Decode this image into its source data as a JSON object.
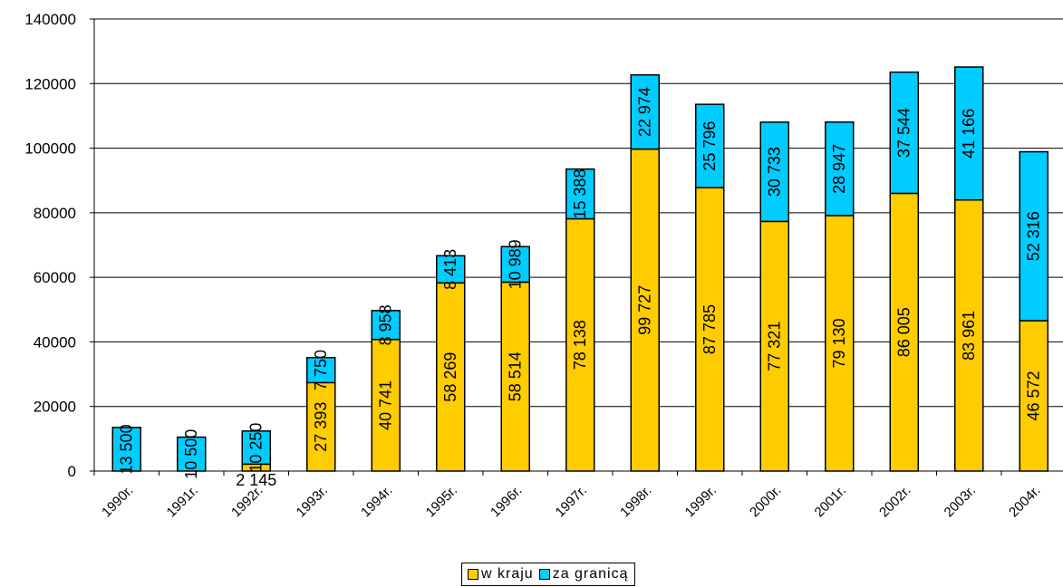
{
  "chart_data": {
    "type": "bar",
    "stacked": true,
    "categories": [
      "1990r.",
      "1991r.",
      "1992r.",
      "1993r.",
      "1994r.",
      "1995r.",
      "1996r.",
      "1997r.",
      "1998r.",
      "1999r.",
      "2000r.",
      "2001r.",
      "2002r.",
      "2003r.",
      "2004r."
    ],
    "series": [
      {
        "name": "w kraju",
        "color": "#FFCC00",
        "values": [
          null,
          null,
          2145,
          27393,
          40741,
          58269,
          58514,
          78138,
          99727,
          87785,
          77321,
          79130,
          86005,
          83961,
          46572
        ],
        "labels": [
          "",
          "",
          "2 145",
          "27 393",
          "40 741",
          "58 269",
          "58 514",
          "78 138",
          "99 727",
          "87 785",
          "77 321",
          "79 130",
          "86 005",
          "83 961",
          "46 572"
        ]
      },
      {
        "name": "za granicą",
        "color": "#00CCFF",
        "values": [
          13500,
          10500,
          10250,
          7750,
          8958,
          8413,
          10989,
          15388,
          22974,
          25796,
          30733,
          28947,
          37544,
          41166,
          52316
        ],
        "labels": [
          "13 500",
          "10 500",
          "10 250",
          "7 750",
          "8 958",
          "8 413",
          "10 989",
          "15 388",
          "22 974",
          "25 796",
          "30 733",
          "28 947",
          "37 544",
          "41 166",
          "52 316"
        ]
      }
    ],
    "yticks": [
      "0",
      "20000",
      "40000",
      "60000",
      "80000",
      "100000",
      "120000",
      "140000"
    ],
    "ylim": [
      0,
      140000
    ],
    "grid": true,
    "legend_position": "bottom"
  }
}
